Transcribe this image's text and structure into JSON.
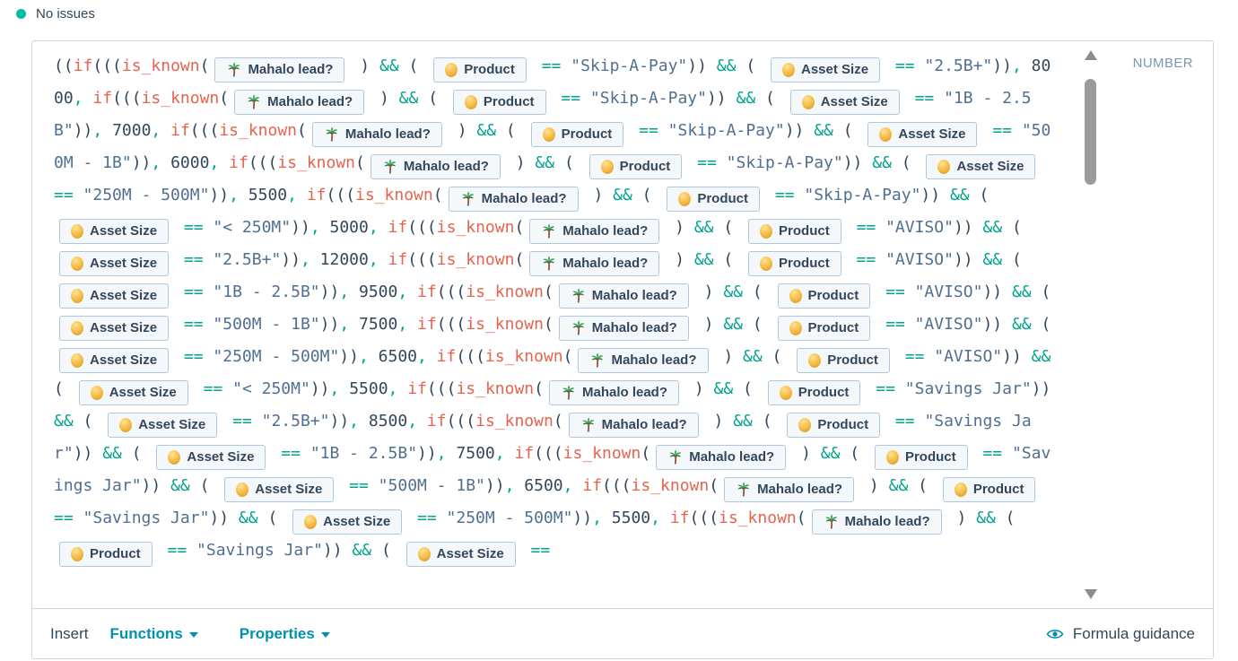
{
  "status": {
    "label": "No issues",
    "dot_color": "#00bda5"
  },
  "editor": {
    "output_type_label": "NUMBER",
    "chips": {
      "lead": {
        "icon": "palm-tree-icon",
        "label": "Mahalo lead?"
      },
      "product": {
        "icon": "coin-icon",
        "label": "Product"
      },
      "asset": {
        "icon": "coin-icon",
        "label": "Asset Size"
      }
    },
    "formula": {
      "open": "((",
      "if_fn": "if",
      "known_fn": "is_known",
      "and_op": "&&",
      "eq_op": "==",
      "comma": ",",
      "conditions": [
        {
          "product": "Skip-A-Pay",
          "asset_size": "2.5B+",
          "value": "8000"
        },
        {
          "product": "Skip-A-Pay",
          "asset_size": "1B - 2.5B",
          "value": "7000"
        },
        {
          "product": "Skip-A-Pay",
          "asset_size": "500M - 1B",
          "value": "6000"
        },
        {
          "product": "Skip-A-Pay",
          "asset_size": "250M - 500M",
          "value": "5500"
        },
        {
          "product": "Skip-A-Pay",
          "asset_size": "< 250M",
          "value": "5000"
        },
        {
          "product": "AVISO",
          "asset_size": "2.5B+",
          "value": "12000"
        },
        {
          "product": "AVISO",
          "asset_size": "1B - 2.5B",
          "value": "9500"
        },
        {
          "product": "AVISO",
          "asset_size": "500M - 1B",
          "value": "7500"
        },
        {
          "product": "AVISO",
          "asset_size": "250M - 500M",
          "value": "6500"
        },
        {
          "product": "AVISO",
          "asset_size": "< 250M",
          "value": "5500"
        },
        {
          "product": "Savings Jar",
          "asset_size": "2.5B+",
          "value": "8500"
        },
        {
          "product": "Savings Jar",
          "asset_size": "1B - 2.5B",
          "value": "7500"
        },
        {
          "product": "Savings Jar",
          "asset_size": "500M - 1B",
          "value": "6500"
        },
        {
          "product": "Savings Jar",
          "asset_size": "250M - 500M",
          "value": "5500"
        },
        {
          "product": "Savings Jar",
          "partial": true
        }
      ]
    }
  },
  "toolbar": {
    "insert_label": "Insert",
    "functions_label": "Functions",
    "properties_label": "Properties",
    "guidance_label": "Formula guidance"
  },
  "colors": {
    "keyword": "#e5644e",
    "operator": "#00a38d",
    "string": "#516f90",
    "text": "#33475b",
    "link": "#0091ae",
    "status_dot": "#00bda5",
    "chip_border": "#afc6dc",
    "border": "#cbd6e2",
    "muted": "#7c98b6"
  }
}
